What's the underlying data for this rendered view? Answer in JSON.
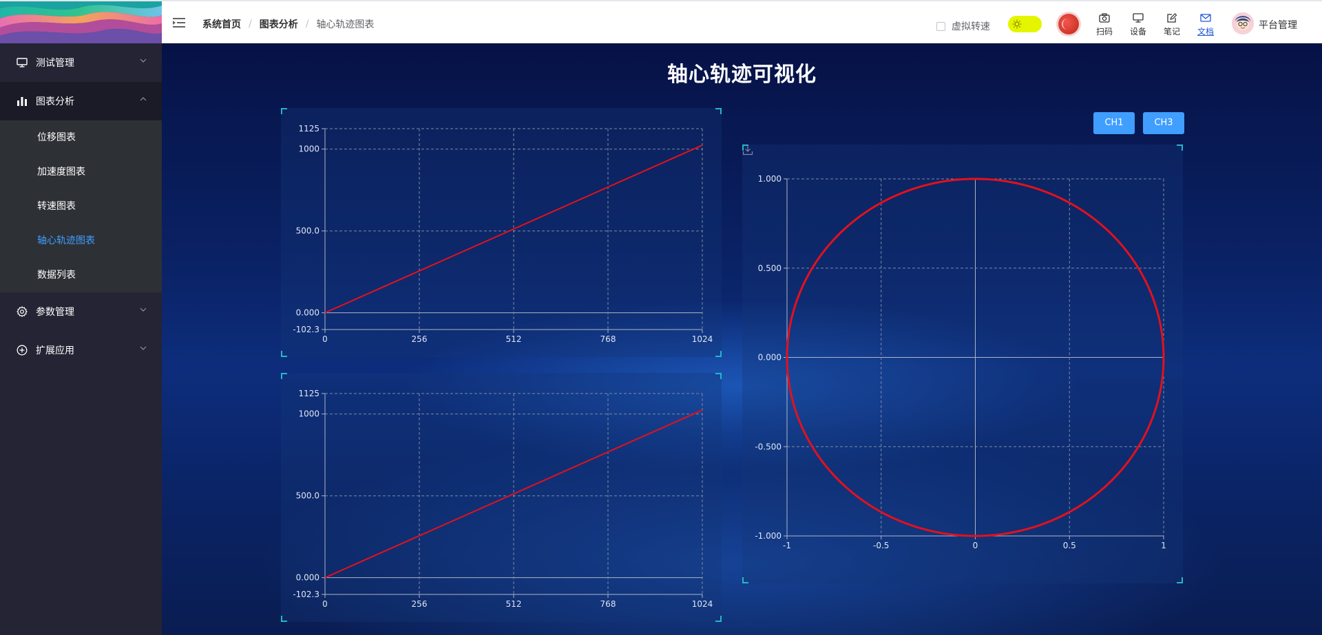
{
  "header": {
    "breadcrumb": [
      "系统首页",
      "图表分析",
      "轴心轨迹图表"
    ],
    "virtual_speed_label": "虚拟转速",
    "tools": [
      {
        "label": "扫码",
        "icon": "camera-icon"
      },
      {
        "label": "设备",
        "icon": "monitor-icon"
      },
      {
        "label": "笔记",
        "icon": "edit-icon"
      },
      {
        "label": "文档",
        "icon": "mail-icon"
      }
    ],
    "user_name": "平台管理",
    "colors": {
      "accent": "#409eff",
      "active_doc": "#1e58d6",
      "toggle": "#e5f500",
      "moon": "#d63a2f"
    }
  },
  "sidebar": {
    "groups": [
      {
        "label": "测试管理",
        "icon": "monitor-icon",
        "open": false
      },
      {
        "label": "图表分析",
        "icon": "bar-chart-icon",
        "open": true,
        "items": [
          {
            "label": "位移图表",
            "active": false
          },
          {
            "label": "加速度图表",
            "active": false
          },
          {
            "label": "转速图表",
            "active": false
          },
          {
            "label": "轴心轨迹图表",
            "active": true
          },
          {
            "label": "数据列表",
            "active": false
          }
        ]
      },
      {
        "label": "参数管理",
        "icon": "gear-icon",
        "open": false
      },
      {
        "label": "扩展应用",
        "icon": "plus-circle-icon",
        "open": false
      }
    ]
  },
  "main": {
    "title": "轴心轨迹可视化",
    "channel_buttons": [
      "CH1",
      "CH3"
    ]
  },
  "chart_data": [
    {
      "type": "line",
      "x": [
        0,
        1024
      ],
      "series": [
        {
          "values": [
            0,
            1024
          ],
          "color": "#e5101c"
        }
      ],
      "xticks": [
        "0",
        "256",
        "512",
        "768",
        "1024"
      ],
      "yticks": [
        "-102.3",
        "0.000",
        "500.0",
        "1000",
        "1125"
      ],
      "xlim": [
        0,
        1024
      ],
      "ylim": [
        -102.3,
        1125
      ],
      "grid": true
    },
    {
      "type": "line",
      "x": [
        0,
        1024
      ],
      "series": [
        {
          "values": [
            0,
            1024
          ],
          "color": "#e5101c"
        }
      ],
      "xticks": [
        "0",
        "256",
        "512",
        "768",
        "1024"
      ],
      "yticks": [
        "-102.3",
        "0.000",
        "500.0",
        "1000",
        "1125"
      ],
      "xlim": [
        0,
        1024
      ],
      "ylim": [
        -102.3,
        1125
      ],
      "grid": true
    },
    {
      "type": "line",
      "shape": "unit circle x=cos(t), y=sin(t)",
      "series": [
        {
          "color": "#e5101c"
        }
      ],
      "xticks": [
        "-1",
        "-0.5",
        "0",
        "0.5",
        "1"
      ],
      "yticks": [
        "-1.000",
        "-0.500",
        "0.000",
        "0.500",
        "1.000"
      ],
      "xlim": [
        -1,
        1
      ],
      "ylim": [
        -1,
        1
      ],
      "grid": true
    }
  ]
}
